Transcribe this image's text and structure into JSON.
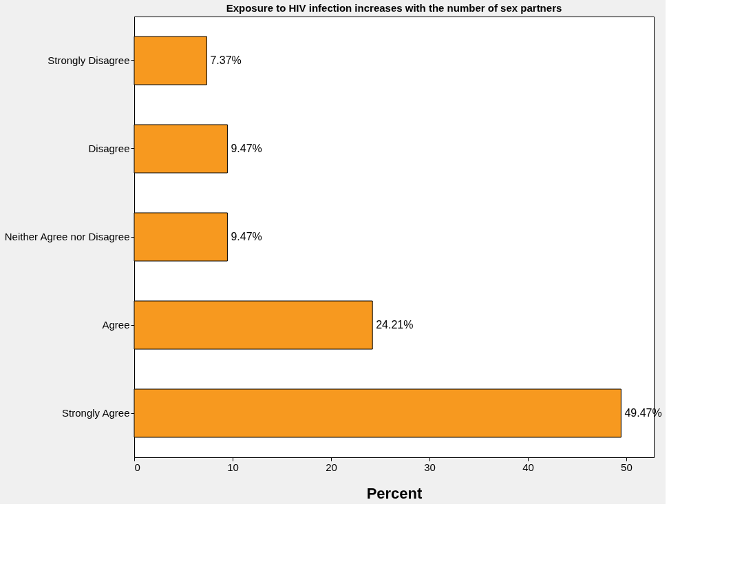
{
  "chart_data": {
    "type": "bar",
    "orientation": "horizontal",
    "title": "Exposure to HIV infection increases with the number of sex partners",
    "xlabel": "Percent",
    "categories": [
      "Strongly Disagree",
      "Disagree",
      "Neither Agree nor Disagree",
      "Agree",
      "Strongly Agree"
    ],
    "values": [
      7.37,
      9.47,
      9.47,
      24.21,
      49.47
    ],
    "value_labels": [
      "7.37%",
      "9.47%",
      "9.47%",
      "24.21%",
      "49.47%"
    ],
    "color": "#f7991f",
    "xlim": [
      0,
      52.8
    ],
    "xticks": [
      0,
      10,
      20,
      30,
      40,
      50
    ],
    "grid": false
  }
}
